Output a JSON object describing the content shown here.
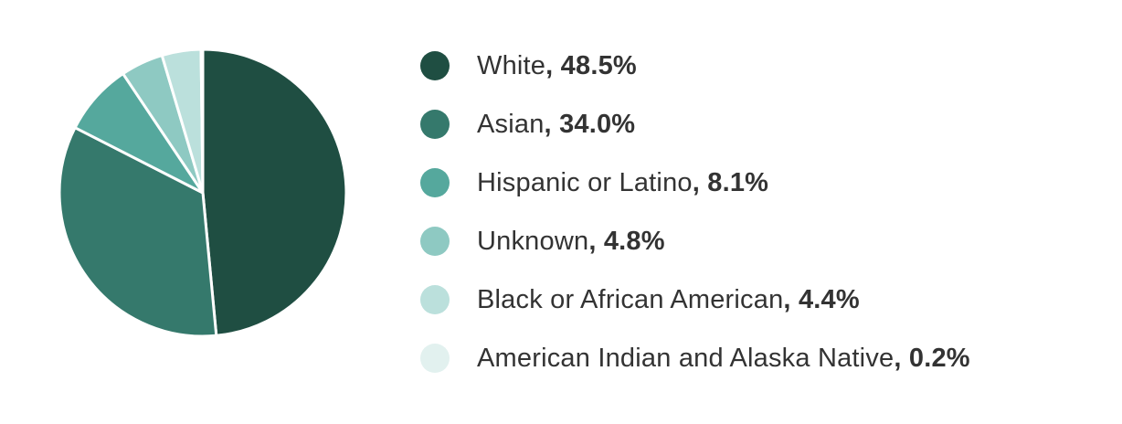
{
  "chart_data": {
    "type": "pie",
    "title": "",
    "legend_position": "right",
    "start": "top, clockwise",
    "slices": [
      {
        "label": "White",
        "value": 48.5,
        "value_label": "48.5%",
        "color": "#1f4e42"
      },
      {
        "label": "Asian",
        "value": 34.0,
        "value_label": "34.0%",
        "color": "#35796c"
      },
      {
        "label": "Hispanic or Latino",
        "value": 8.1,
        "value_label": "8.1%",
        "color": "#55a89d"
      },
      {
        "label": "Unknown",
        "value": 4.8,
        "value_label": "4.8%",
        "color": "#8ec9c2"
      },
      {
        "label": "Black or African American",
        "value": 4.4,
        "value_label": "4.4%",
        "color": "#bbe0dc"
      },
      {
        "label": "American Indian and Alaska Native",
        "value": 0.2,
        "value_label": "0.2%",
        "color": "#e2f1ef"
      }
    ]
  }
}
